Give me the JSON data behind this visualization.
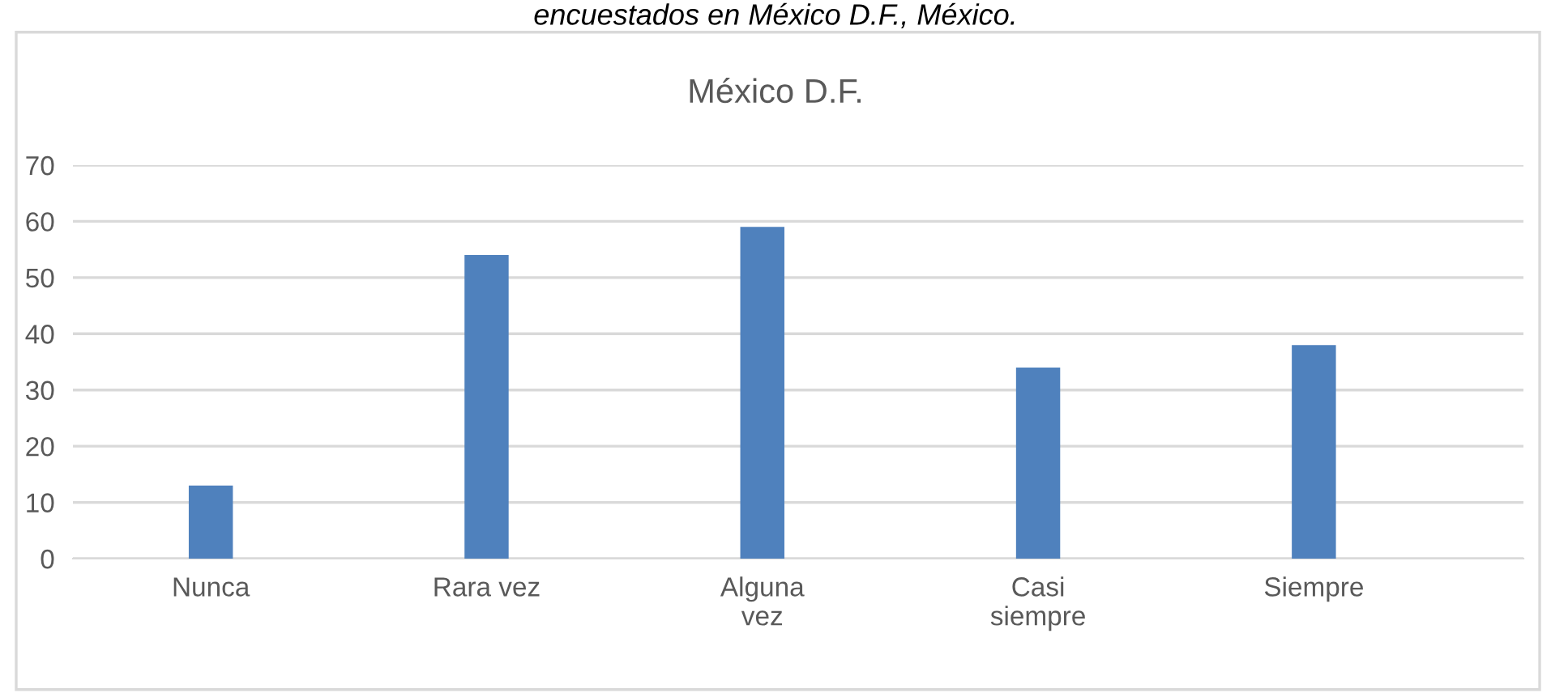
{
  "chart_data": {
    "type": "bar",
    "title": "México D.F.",
    "annotations": [
      "encuestados en México D.F., México."
    ],
    "categories": [
      "Nunca",
      "Rara vez",
      "Alguna\nvez",
      "Casi\nsiempre",
      "Siempre"
    ],
    "values": [
      13,
      54,
      59,
      34,
      38
    ],
    "color": "#4f81bd",
    "ylim": [
      0,
      70
    ],
    "yticks": [
      0,
      10,
      20,
      30,
      40,
      50,
      60,
      70
    ],
    "grid": "y",
    "legend": false
  }
}
